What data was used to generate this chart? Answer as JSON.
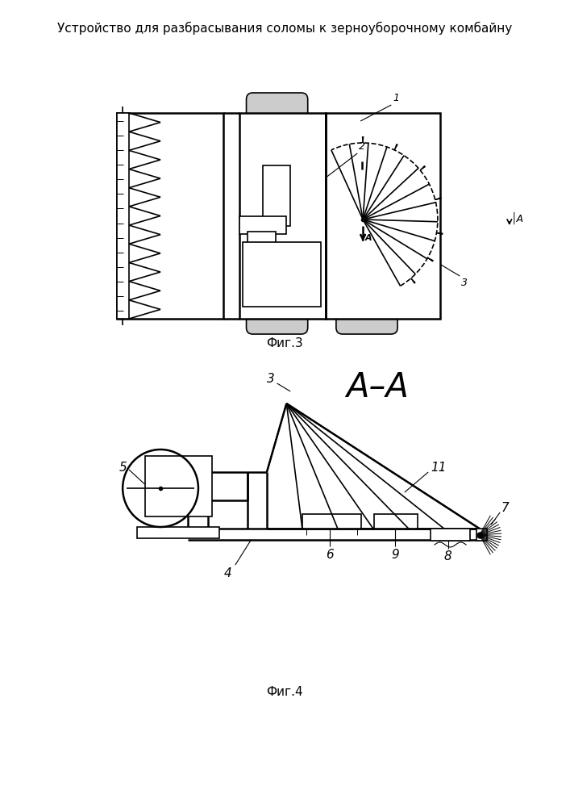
{
  "title": "Устройство для разбрасывания соломы к зерноуборочному комбайну",
  "fig3_caption": "Фиг.3",
  "fig4_caption": "Фиг.4",
  "fig4_section_label": "А–А",
  "background_color": "#ffffff",
  "line_color": "#000000",
  "line_width": 1.2
}
